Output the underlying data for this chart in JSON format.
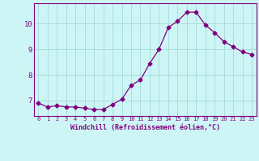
{
  "x": [
    0,
    1,
    2,
    3,
    4,
    5,
    6,
    7,
    8,
    9,
    10,
    11,
    12,
    13,
    14,
    15,
    16,
    17,
    18,
    19,
    20,
    21,
    22,
    23
  ],
  "y": [
    6.9,
    6.75,
    6.8,
    6.75,
    6.75,
    6.7,
    6.65,
    6.65,
    6.85,
    7.05,
    7.6,
    7.8,
    8.45,
    9.0,
    9.85,
    10.1,
    10.45,
    10.45,
    9.95,
    9.65,
    9.3,
    9.1,
    8.9,
    8.8
  ],
  "line_color": "#800080",
  "marker": "D",
  "marker_size": 2.5,
  "background_color": "#cef5f5",
  "grid_color": "#aadddd",
  "xlabel": "Windchill (Refroidissement éolien,°C)",
  "xlabel_color": "#800080",
  "tick_color": "#800080",
  "ylabel_ticks": [
    7,
    8,
    9,
    10
  ],
  "xlim": [
    -0.5,
    23.5
  ],
  "ylim": [
    6.4,
    10.8
  ]
}
